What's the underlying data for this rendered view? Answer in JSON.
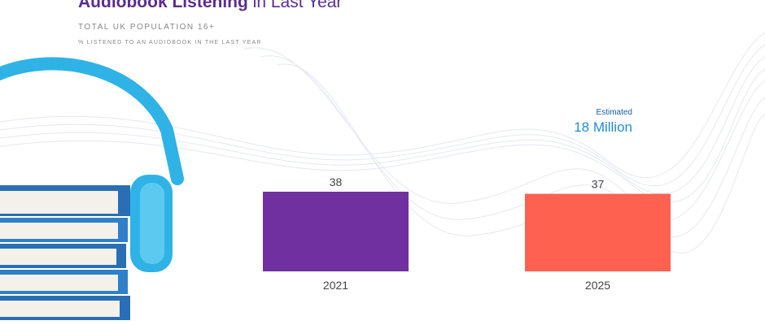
{
  "chart_data": {
    "type": "bar",
    "title": {
      "bold": "Audiobook Listening",
      "regular": "in Last Year"
    },
    "subtitle": "TOTAL UK POPULATION 16+",
    "caption": "% LISTENED TO AN AUDIOBOOK IN THE LAST YEAR",
    "annotation": {
      "label": "Estimated",
      "text": "18 Million"
    },
    "categories": [
      "2021",
      "2025"
    ],
    "values": [
      38,
      37
    ],
    "colors": [
      "#7030a0",
      "#ff6150"
    ]
  }
}
